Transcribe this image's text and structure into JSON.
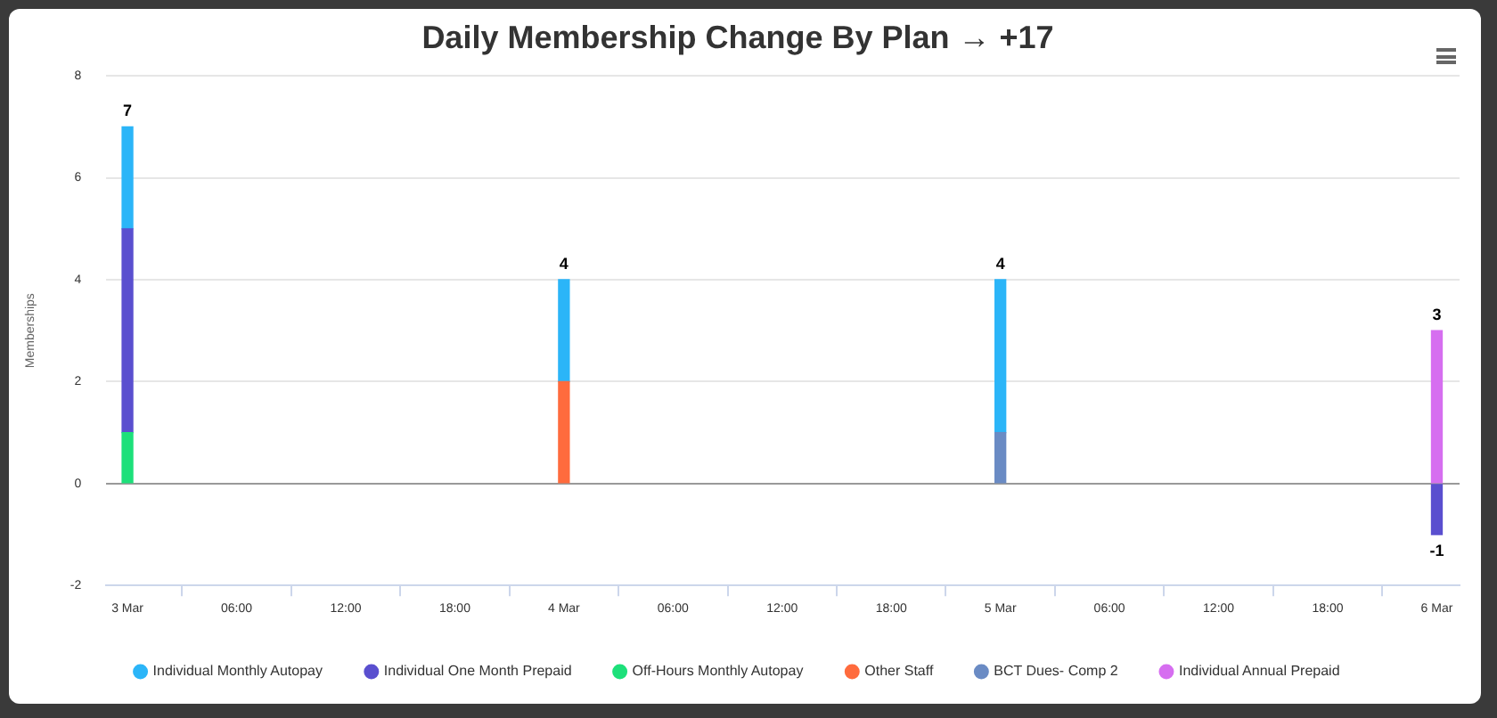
{
  "chart_data": {
    "type": "bar",
    "title": "Daily Membership Change By Plan → +17",
    "ylabel": "Memberships",
    "stacked": true,
    "x": [
      "--03-03",
      "--03-04",
      "--03-05",
      "--03-06"
    ],
    "series": [
      {
        "name": "Individual Annual Prepaid",
        "color": "#d66ef0",
        "values": [
          null,
          null,
          null,
          3
        ]
      },
      {
        "name": "BCT Dues- Comp 2",
        "color": "#6a8bc4",
        "values": [
          null,
          null,
          1,
          null
        ]
      },
      {
        "name": "Other Staff",
        "color": "#ff6b3d",
        "values": [
          null,
          2,
          null,
          null
        ]
      },
      {
        "name": "Off-Hours Monthly Autopay",
        "color": "#1de07a",
        "values": [
          1,
          null,
          null,
          null
        ]
      },
      {
        "name": "Individual One Month Prepaid",
        "color": "#5a4fcf",
        "values": [
          4,
          null,
          null,
          -1
        ]
      },
      {
        "name": "Individual Monthly Autopay",
        "color": "#2bb5f8",
        "values": [
          2,
          2,
          3,
          null
        ]
      }
    ],
    "totals": [
      "7",
      "4",
      "4",
      "3"
    ],
    "annotations": [
      {
        "text": "-1",
        "x": "--03-06",
        "y": -1
      }
    ],
    "ylim": [
      -2,
      8
    ],
    "yticks": [
      -2,
      0,
      2,
      4,
      6,
      8
    ],
    "xlim": [
      "--03-02T22:50",
      "--03-06T01:15"
    ],
    "xticks": [
      {
        "value": "--03-03",
        "label": "3 Mar"
      },
      {
        "value": "--03-03T06:00",
        "label": "06:00"
      },
      {
        "value": "--03-03T12:00",
        "label": "12:00"
      },
      {
        "value": "--03-03T18:00",
        "label": "18:00"
      },
      {
        "value": "--03-04",
        "label": "4 Mar"
      },
      {
        "value": "--03-04T06:00",
        "label": "06:00"
      },
      {
        "value": "--03-04T12:00",
        "label": "12:00"
      },
      {
        "value": "--03-04T18:00",
        "label": "18:00"
      },
      {
        "value": "--03-05",
        "label": "5 Mar"
      },
      {
        "value": "--03-05T06:00",
        "label": "06:00"
      },
      {
        "value": "--03-05T12:00",
        "label": "12:00"
      },
      {
        "value": "--03-05T18:00",
        "label": "18:00"
      },
      {
        "value": "--03-06",
        "label": "6 Mar"
      }
    ],
    "grid": "y",
    "legend": "bottom"
  }
}
